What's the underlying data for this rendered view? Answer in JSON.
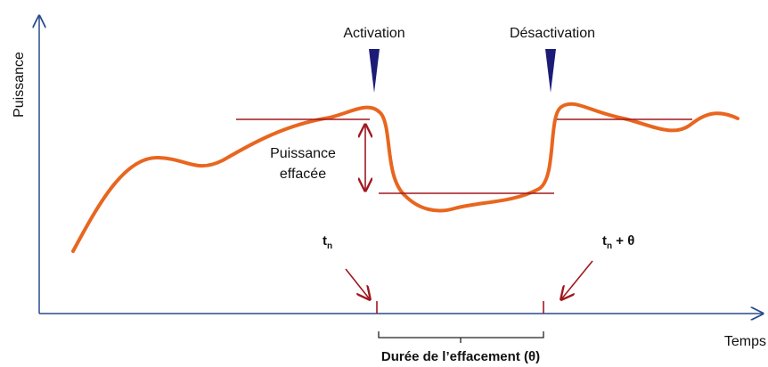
{
  "labels": {
    "y_axis": "Puissance",
    "x_axis": "Temps",
    "activation": "Activation",
    "deactivation": "Désactivation",
    "reduced_power": [
      "Puissance",
      "effacée"
    ],
    "tn": {
      "base": "t",
      "sub": "n"
    },
    "tn_theta": {
      "base": "t",
      "sub": "n",
      "rest": " + θ"
    },
    "duration": "Durée de l’effacement (θ)"
  }
}
